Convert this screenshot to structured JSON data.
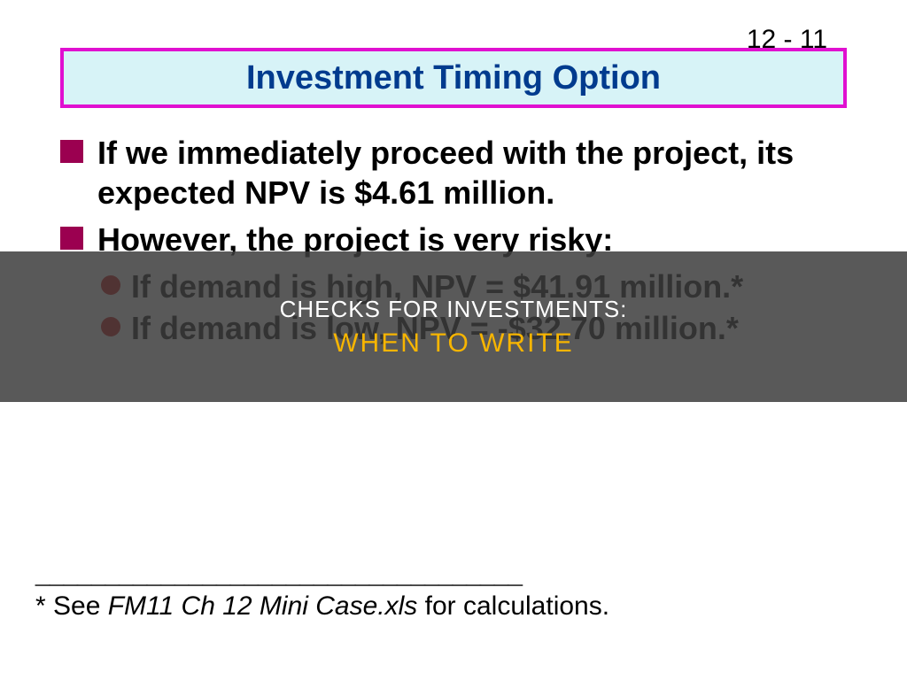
{
  "page_number": "12 - 11",
  "title": "Investment Timing Option",
  "bullets": {
    "b1": "If we immediately proceed with the project, its expected NPV is $4.61 million.",
    "b2": "However, the project is very risky:",
    "sub1": "If demand is high, NPV = $41.91 million.*",
    "sub2": "If demand is low, NPV = -$32.70 million.*"
  },
  "divider_line": "___________________________________",
  "footnote_prefix": "* See ",
  "footnote_italic": "FM11 Ch 12 Mini Case.xls",
  "footnote_suffix": " for calculations.",
  "overlay": {
    "line1": "CHECKS FOR INVESTMENTS:",
    "line2": "WHEN TO WRITE"
  },
  "colors": {
    "title_border": "#e010d0",
    "title_bg": "#d7f3f7",
    "title_text": "#003b8e",
    "square_bullet": "#9b0050",
    "circle_bullet": "#c00000",
    "overlay_bg": "rgba(60,60,60,0.85)",
    "overlay_accent": "#f7b500"
  }
}
